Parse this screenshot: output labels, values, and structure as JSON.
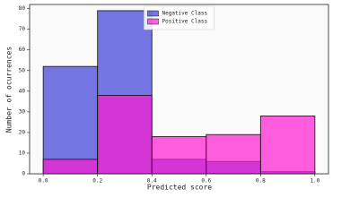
{
  "chart_data": {
    "type": "histogram",
    "xlabel": "Predicted score",
    "ylabel": "Number of ocurrences",
    "bins": [
      0,
      0.2,
      0.4,
      0.6,
      0.8,
      1
    ],
    "series": [
      {
        "name": "Negative Class",
        "color": "#3b3bd9",
        "values": [
          52,
          79,
          7,
          6,
          1
        ]
      },
      {
        "name": "Positive Class",
        "color": "#ff1ad1",
        "values": [
          7,
          38,
          18,
          19,
          28
        ]
      }
    ],
    "xlim": [
      -0.05,
      1.05
    ],
    "xticks": [
      {
        "value": 0,
        "label": "0.0"
      },
      0.2,
      0.4,
      0.6,
      0.8,
      {
        "value": 1,
        "label": "1.0"
      }
    ],
    "ylim": [
      0,
      82
    ],
    "yticks": [
      0,
      10,
      20,
      30,
      40,
      50,
      60,
      70,
      80
    ],
    "legend": "upper center"
  }
}
